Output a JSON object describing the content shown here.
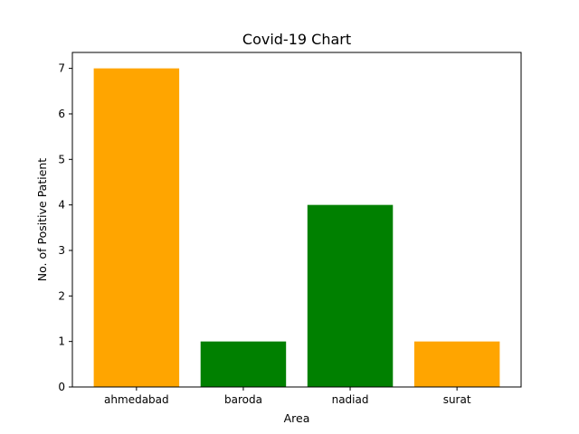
{
  "chart_data": {
    "type": "bar",
    "title": "Covid-19 Chart",
    "xlabel": "Area",
    "ylabel": "No. of Positive Patient",
    "categories": [
      "ahmedabad",
      "baroda",
      "nadiad",
      "surat"
    ],
    "values": [
      7,
      1,
      4,
      1
    ],
    "bar_colors": [
      "#ffa500",
      "#008000",
      "#008000",
      "#ffa500"
    ],
    "ylim": [
      0,
      7.35
    ],
    "yticks": [
      0,
      1,
      2,
      3,
      4,
      5,
      6,
      7
    ],
    "grid": false,
    "legend": "none"
  }
}
